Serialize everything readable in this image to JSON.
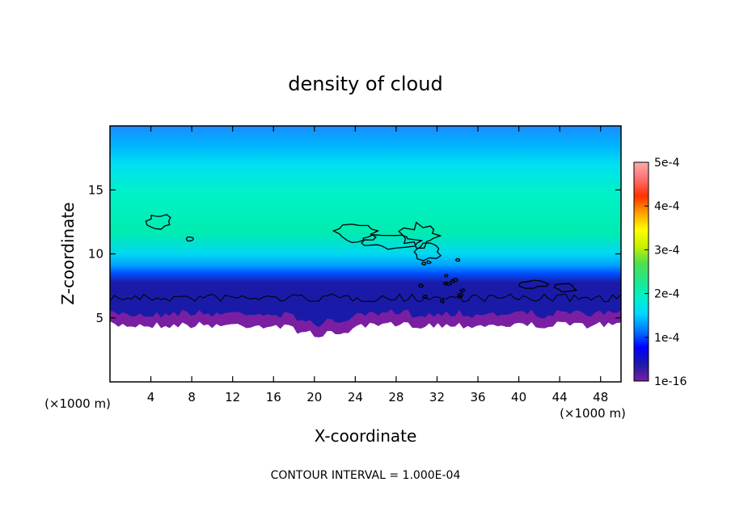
{
  "chart_data": {
    "type": "heatmap",
    "title": "density of cloud",
    "xlabel": "X-coordinate",
    "ylabel": "Z-coordinate",
    "x_unit": "(×1000 m)",
    "y_unit": "(×1000 m)",
    "xlim": [
      0,
      50
    ],
    "ylim": [
      0,
      20
    ],
    "x_ticks": [
      4,
      8,
      12,
      16,
      20,
      24,
      28,
      32,
      36,
      40,
      44,
      48
    ],
    "y_ticks": [
      5,
      10,
      15
    ],
    "colorbar": {
      "min": 1e-16,
      "max": 0.0005,
      "tick_values": [
        1e-16,
        0.0001,
        0.0002,
        0.0003,
        0.0004,
        0.0005
      ],
      "tick_labels": [
        "1e-16",
        "1e-4",
        "2e-4",
        "3e-4",
        "4e-4",
        "5e-4"
      ],
      "colors": [
        "#7b1fa2",
        "#1a1aa8",
        "#0000ff",
        "#0078ff",
        "#00d8ff",
        "#00f2c8",
        "#22e68a",
        "#4ee04e",
        "#c8f000",
        "#ffff00",
        "#ffa000",
        "#ff3000",
        "#ff7070",
        "#ffaaaa"
      ]
    },
    "field_summary": {
      "cloud_base_z": 5,
      "cloud_top_z": 20,
      "typical_value": 0.00018
    },
    "contour_interval_text": "CONTOUR INTERVAL = 1.000E-04"
  }
}
